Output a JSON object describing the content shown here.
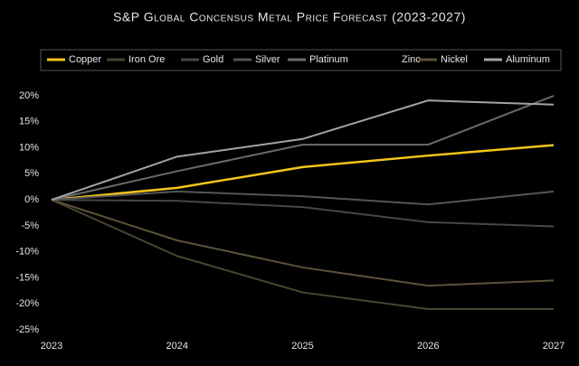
{
  "chart_data": {
    "type": "line",
    "title": "S&P Global Concensus Metal Price Forecast (2023-2027)",
    "categories": [
      "2023",
      "2024",
      "2025",
      "2026",
      "2027"
    ],
    "series": [
      {
        "name": "Copper",
        "color": "#f5c518",
        "values": [
          0,
          2.3,
          6.3,
          8.5,
          10.5
        ]
      },
      {
        "name": "Iron Ore",
        "color": "#4a4430",
        "values": [
          0,
          -10.8,
          -17.8,
          -21,
          -21
        ]
      },
      {
        "name": "Gold",
        "color": "#474747",
        "values": [
          0,
          -0.2,
          -1.4,
          -4.3,
          -5.1
        ]
      },
      {
        "name": "Silver",
        "color": "#555555",
        "values": [
          0,
          1.6,
          0.7,
          -0.9,
          1.6
        ]
      },
      {
        "name": "Platinum",
        "color": "#6b6b6b",
        "values": [
          0,
          5.5,
          10.6,
          10.6,
          20
        ]
      },
      {
        "name": "Zinc",
        "color": "#000000",
        "values": [
          null,
          null,
          null,
          null,
          null
        ]
      },
      {
        "name": "Nickel",
        "color": "#5c5338",
        "values": [
          0,
          -7.8,
          -13,
          -16.5,
          -15.5
        ]
      },
      {
        "name": "Aluminum",
        "color": "#a3a3a3",
        "values": [
          0,
          8.3,
          11.7,
          19.1,
          18.3
        ]
      }
    ],
    "ylim": [
      -25,
      20
    ],
    "yticks": [
      {
        "value": -25,
        "label": "-25%"
      },
      {
        "value": -20,
        "label": "-20%"
      },
      {
        "value": -15,
        "label": "-15%"
      },
      {
        "value": -10,
        "label": "-10%"
      },
      {
        "value": -5,
        "label": "-5%"
      },
      {
        "value": 0,
        "label": "0%"
      },
      {
        "value": 5,
        "label": "5%"
      },
      {
        "value": 10,
        "label": "10%"
      },
      {
        "value": 15,
        "label": "15%"
      },
      {
        "value": 20,
        "label": "20%"
      }
    ],
    "legend": "top"
  }
}
